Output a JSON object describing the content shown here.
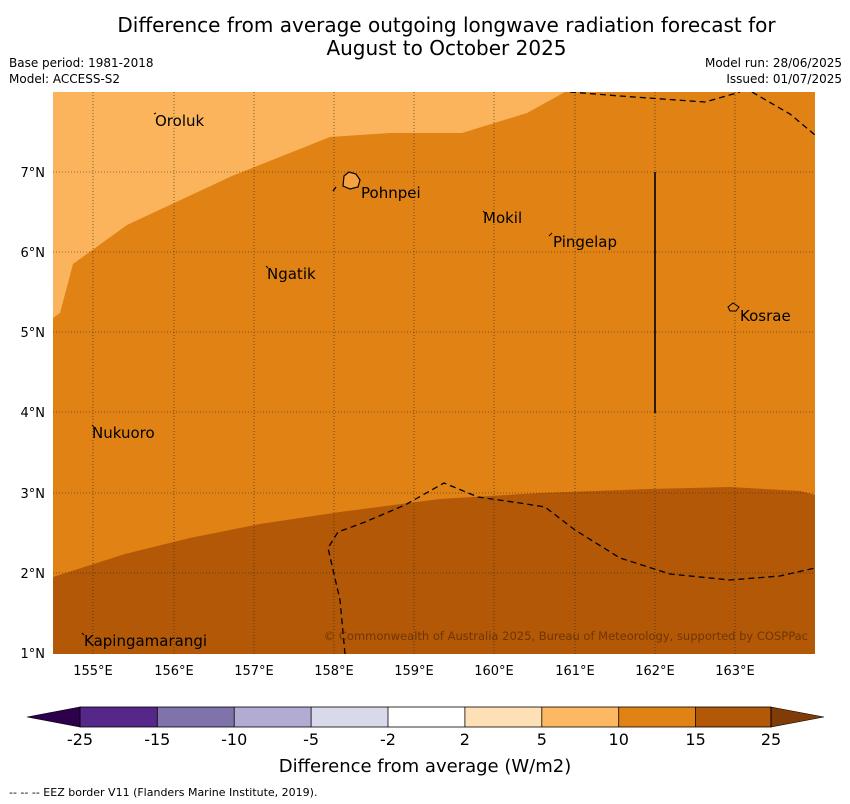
{
  "header": {
    "title_line1": "Difference from average outgoing longwave radiation forecast for",
    "title_line2": "August to October 2025",
    "base_period": "Base period: 1981-2018",
    "model": "Model: ACCESS-S2",
    "model_run": "Model run: 28/06/2025",
    "issued": "Issued: 01/07/2025"
  },
  "map": {
    "lon_range": [
      154.5,
      164.0
    ],
    "lat_range": [
      1.0,
      8.0
    ],
    "lon_ticks": [
      "155°E",
      "156°E",
      "157°E",
      "158°E",
      "159°E",
      "160°E",
      "161°E",
      "162°E",
      "163°E"
    ],
    "lat_ticks": [
      "1°N",
      "2°N",
      "3°N",
      "4°N",
      "5°N",
      "6°N",
      "7°N"
    ],
    "places": [
      {
        "name": "Oroluk"
      },
      {
        "name": "Pohnpei"
      },
      {
        "name": "Mokil"
      },
      {
        "name": "Pingelap"
      },
      {
        "name": "Ngatik"
      },
      {
        "name": "Kosrae"
      },
      {
        "name": "Nukuoro"
      },
      {
        "name": "Kapingamarangi"
      }
    ],
    "copyright": "© Commonwealth of Australia 2025, Bureau of Meteorology, supported by COSPPac",
    "category_colors": {
      "5_to_10": "#fbb45c",
      "10_to_15": "#e08214",
      "15_to_25": "#b35806"
    }
  },
  "legend": {
    "ticks": [
      "-25",
      "-15",
      "-10",
      "-5",
      "-2",
      "2",
      "5",
      "10",
      "15",
      "25"
    ],
    "colors": [
      "#542788",
      "#8073ac",
      "#b2abd2",
      "#d8daeb",
      "#ffffff",
      "#fee0b6",
      "#fdb863",
      "#e08214",
      "#b35806"
    ],
    "under_color": "#2d004b",
    "over_color": "#7f3b08",
    "label": "Difference from average (W/m2)"
  },
  "footnote": "--  --  -- EEZ border V11 (Flanders Marine Institute, 2019)."
}
